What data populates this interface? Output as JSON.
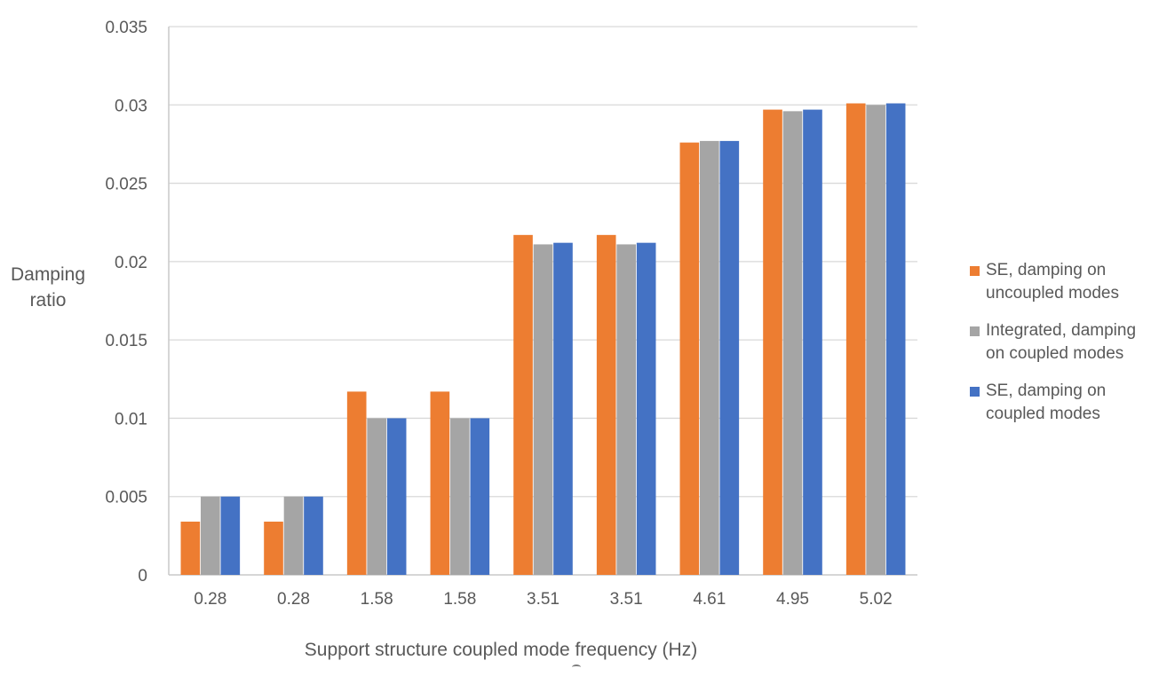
{
  "chart_data": {
    "type": "bar",
    "title": "",
    "ylabel": "Damping ratio",
    "ylabel_lines": [
      "Damping",
      "ratio"
    ],
    "xlabel": "Support structure coupled mode frequency (Hz)",
    "categories": [
      "0.28",
      "0.28",
      "1.58",
      "1.58",
      "3.51",
      "3.51",
      "4.61",
      "4.95",
      "5.02"
    ],
    "series": [
      {
        "name": "SE, damping on uncoupled modes",
        "color": "#ED7D31",
        "values": [
          0.0034,
          0.0034,
          0.0117,
          0.0117,
          0.0217,
          0.0217,
          0.0276,
          0.0297,
          0.0301
        ]
      },
      {
        "name": "Integrated, damping on coupled modes",
        "color": "#A5A5A5",
        "values": [
          0.005,
          0.005,
          0.01,
          0.01,
          0.0211,
          0.0211,
          0.0277,
          0.0296,
          0.03
        ]
      },
      {
        "name": "SE, damping on coupled modes",
        "color": "#4472C4",
        "values": [
          0.005,
          0.005,
          0.01,
          0.01,
          0.0212,
          0.0212,
          0.0277,
          0.0297,
          0.0301
        ]
      }
    ],
    "ylim": [
      0,
      0.035
    ],
    "ytick_step": 0.005,
    "yticks": [
      "0",
      "0.005",
      "0.01",
      "0.015",
      "0.02",
      "0.025",
      "0.03",
      "0.035"
    ],
    "grid": true,
    "legend_position": "right"
  },
  "colors": {
    "grid": "#D9D9D9",
    "axis": "#C9C9C9",
    "text": "#595959",
    "background": "#FFFFFF"
  }
}
